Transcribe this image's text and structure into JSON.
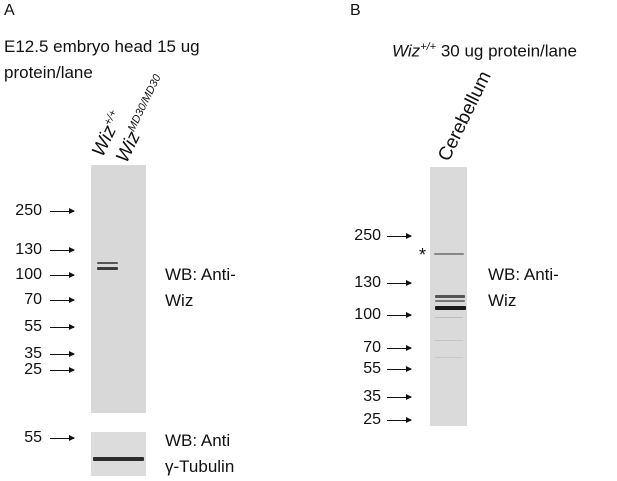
{
  "panel_a": {
    "letter": "A",
    "title_line1": "E12.5 embryo head 15 ug",
    "title_line2": "protein/lane",
    "lane1_prefix": "Wiz",
    "lane1_sup": "+/+",
    "lane2_prefix": "Wiz",
    "lane2_sup": "MD30/MD30",
    "markers": [
      "250",
      "130",
      "100",
      "70",
      "55",
      "35",
      "25"
    ],
    "tubulin_marker": "55",
    "wb_wiz_line1": "WB: Anti-",
    "wb_wiz_line2": "Wiz",
    "wb_tub_line1": "WB: Anti",
    "wb_tub_line2": "γ-Tubulin"
  },
  "panel_b": {
    "letter": "B",
    "title_prefix": "Wiz",
    "title_sup": "+/+",
    "title_rest": " 30 ug protein/lane",
    "lane": "Cerebellum",
    "markers": [
      "250",
      "130",
      "100",
      "70",
      "55",
      "35",
      "25"
    ],
    "asterisk": "*",
    "wb_line1": "WB: Anti-",
    "wb_line2": "Wiz"
  }
}
